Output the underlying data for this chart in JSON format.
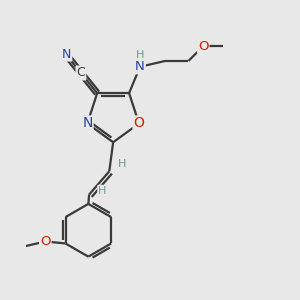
{
  "background_color": "#e8e8e8",
  "bond_color": "#3a3a3a",
  "bond_width": 1.6,
  "atom_colors": {
    "C": "#3a3a3a",
    "N": "#2244aa",
    "O": "#cc2200",
    "H": "#6a9898"
  },
  "font_size": 9
}
